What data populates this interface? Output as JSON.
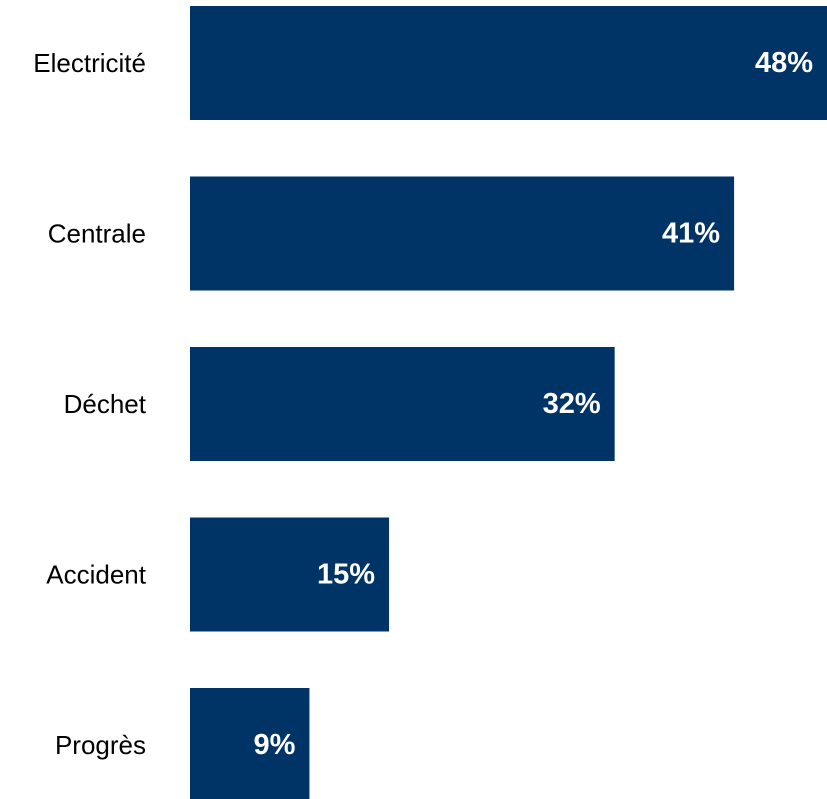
{
  "chart_data": {
    "type": "bar",
    "orientation": "horizontal",
    "categories": [
      "Electricité",
      "Centrale",
      "Déchet",
      "Accident",
      "Progrès"
    ],
    "values": [
      48,
      41,
      32,
      15,
      9
    ],
    "value_labels": [
      "48%",
      "41%",
      "32%",
      "15%",
      "9%"
    ],
    "unit": "%",
    "title": "",
    "xlabel": "",
    "ylabel": "",
    "xlim": [
      0,
      48
    ],
    "grid": false,
    "legend": "none",
    "bar_color": "#003366",
    "value_label_color": "#ffffff"
  }
}
